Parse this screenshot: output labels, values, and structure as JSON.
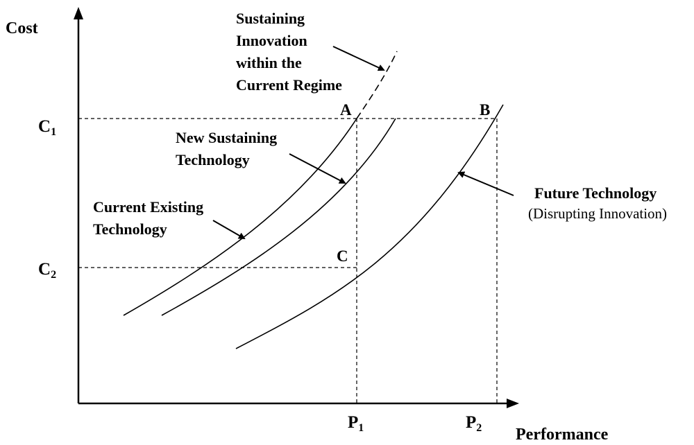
{
  "axes": {
    "y_title": "Cost",
    "x_title": "Performance",
    "y_ticks": [
      {
        "main": "C",
        "sub": "1"
      },
      {
        "main": "C",
        "sub": "2"
      }
    ],
    "x_ticks": [
      {
        "main": "P",
        "sub": "1"
      },
      {
        "main": "P",
        "sub": "2"
      }
    ]
  },
  "points": {
    "a": "A",
    "b": "B",
    "c": "C"
  },
  "annotations": {
    "sustaining": [
      "Sustaining",
      "Innovation",
      "within the",
      "Current Regime"
    ],
    "new_sustaining": [
      "New Sustaining",
      "Technology"
    ],
    "current_existing": [
      "Current Existing",
      "Technology"
    ],
    "future": [
      "Future Technology",
      "(Disrupting Innovation)"
    ]
  },
  "colors": {
    "ink": "#000000",
    "background": "#ffffff"
  }
}
